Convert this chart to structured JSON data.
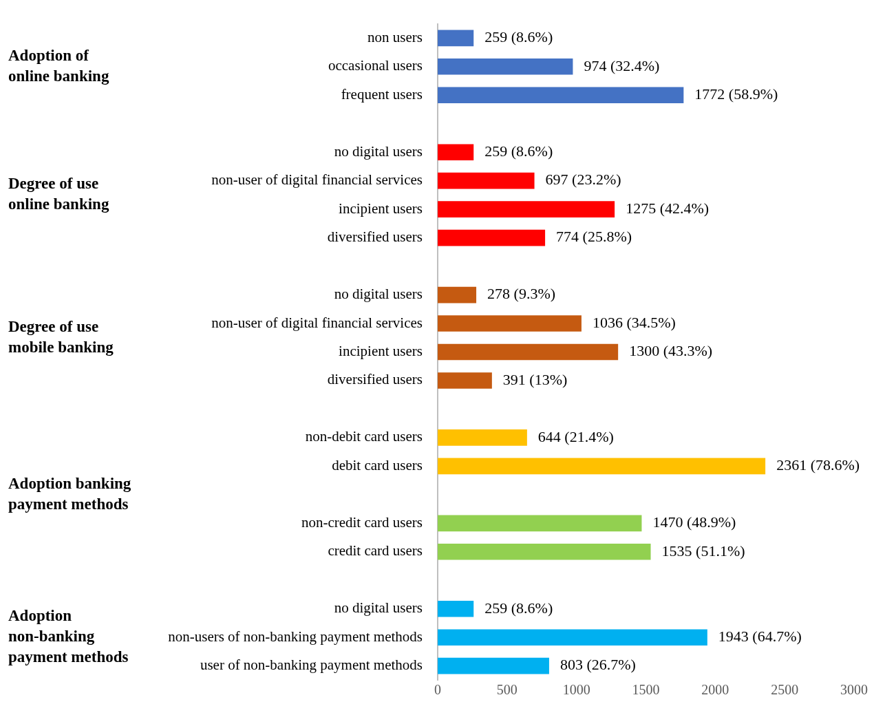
{
  "chart_data": {
    "type": "bar",
    "orientation": "horizontal",
    "categories": [
      "non users",
      "occasional users",
      "frequent users",
      null,
      "no digital users",
      "non-user of digital financial services",
      "incipient users",
      "diversified users",
      null,
      "no digital users",
      "non-user of digital financial services",
      "incipient users",
      "diversified users",
      null,
      "non-debit card users",
      "debit card users",
      null,
      "non-credit card users",
      "credit card users",
      null,
      "no digital users",
      "non-users of non-banking payment methods",
      "user of non-banking payment methods"
    ],
    "values": [
      259,
      974,
      1772,
      null,
      259,
      697,
      1275,
      774,
      null,
      278,
      1036,
      1300,
      391,
      null,
      644,
      2361,
      null,
      1470,
      1535,
      null,
      259,
      1943,
      803
    ],
    "value_labels": [
      "259 (8.6%)",
      "974 (32.4%)",
      "1772 (58.9%)",
      null,
      "259 (8.6%)",
      "697 (23.2%)",
      "1275 (42.4%)",
      "774 (25.8%)",
      null,
      "278 (9.3%)",
      "1036 (34.5%)",
      "1300 (43.3%)",
      "391 (13%)",
      null,
      "644 (21.4%)",
      "2361 (78.6%)",
      null,
      "1470 (48.9%)",
      "1535 (51.1%)",
      null,
      "259 (8.6%)",
      "1943 (64.7%)",
      "803 (26.7%)"
    ],
    "colors": [
      "#4472c4",
      "#4472c4",
      "#4472c4",
      null,
      "#ff0000",
      "#ff0000",
      "#ff0000",
      "#ff0000",
      null,
      "#c55a11",
      "#c55a11",
      "#c55a11",
      "#c55a11",
      null,
      "#ffc000",
      "#ffc000",
      null,
      "#92d050",
      "#92d050",
      null,
      "#00b0f0",
      "#00b0f0",
      "#00b0f0"
    ],
    "xlim": [
      0,
      3000
    ],
    "xticks": [
      0,
      500,
      1000,
      1500,
      2000,
      2500,
      3000
    ],
    "grid": false,
    "legend": false,
    "annotations": [
      "Adoption of\nonline banking",
      "Degree of use\nonline banking",
      "Degree of use\nmobile banking",
      "Adoption banking\npayment methods",
      "Adoption\nnon-banking\npayment methods"
    ]
  }
}
